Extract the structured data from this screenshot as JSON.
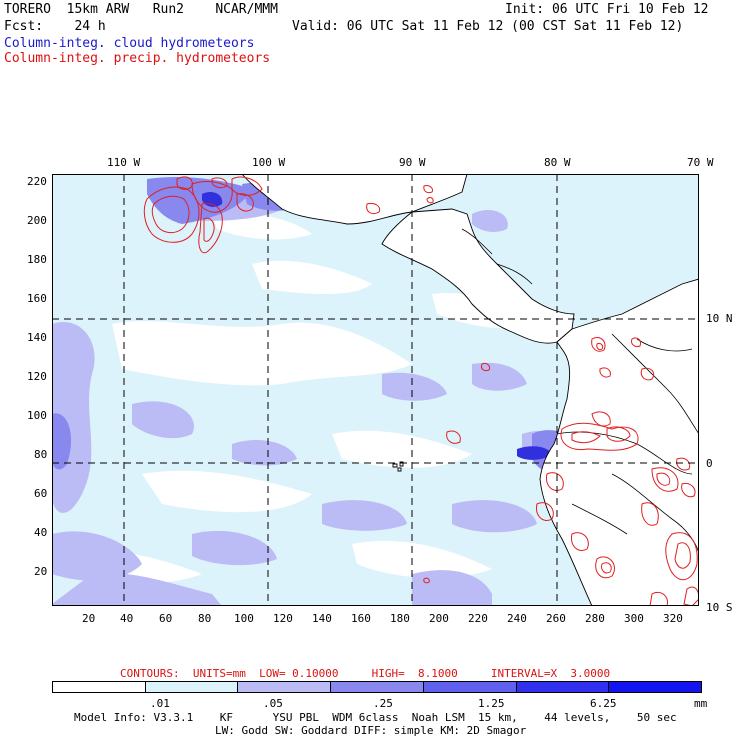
{
  "header": {
    "line1_left": "TORERO  15km ARW   Run2    NCAR/MMM",
    "line1_right": "Init: 06 UTC Fri 10 Feb 12",
    "line2_left": "Fcst:    24 h",
    "line2_right": "Valid: 06 UTC Sat 11 Feb 12 (00 CST Sat 11 Feb 12)",
    "legend_cloud": "Column-integ. cloud hydrometeors",
    "legend_precip": "Column-integ. precip. hydrometeors"
  },
  "map": {
    "lon_labels": [
      "110 W",
      "100 W",
      "90 W",
      "80 W",
      "70 W"
    ],
    "lat_labels": [
      "10 N",
      "0",
      "10 S"
    ],
    "y_ticks": [
      "220",
      "200",
      "180",
      "160",
      "140",
      "120",
      "100",
      "80",
      "60",
      "40",
      "20"
    ],
    "x_ticks": [
      "20",
      "40",
      "60",
      "80",
      "100",
      "120",
      "140",
      "160",
      "180",
      "200",
      "220",
      "240",
      "260",
      "280",
      "300",
      "320"
    ],
    "colors": {
      "land": "#ffffff",
      "light": "#ddf3fb",
      "mid1": "#bbbbf5",
      "mid2": "#8888ee",
      "dark": "#4040dd",
      "darkest": "#1010ee",
      "contour": "#e02020"
    }
  },
  "colorbar": {
    "labels": [
      ".01",
      ".05",
      ".25",
      "1.25",
      "6.25",
      "mm"
    ],
    "colors": [
      "#ffffff",
      "#ddf3fb",
      "#bbbbf5",
      "#8888ee",
      "#6060ee",
      "#3030ee",
      "#1414ee"
    ]
  },
  "contours_info": "CONTOURS:  UNITS=mm  LOW= 0.10000     HIGH=  8.1000     INTERVAL=X  3.0000",
  "footer": {
    "line1": "Model Info: V3.3.1    KF      YSU PBL  WDM 6class  Noah LSM  15 km,    44 levels,    50 sec",
    "line2": "LW: Godd SW: Goddard DIFF: simple KM: 2D Smagor"
  }
}
